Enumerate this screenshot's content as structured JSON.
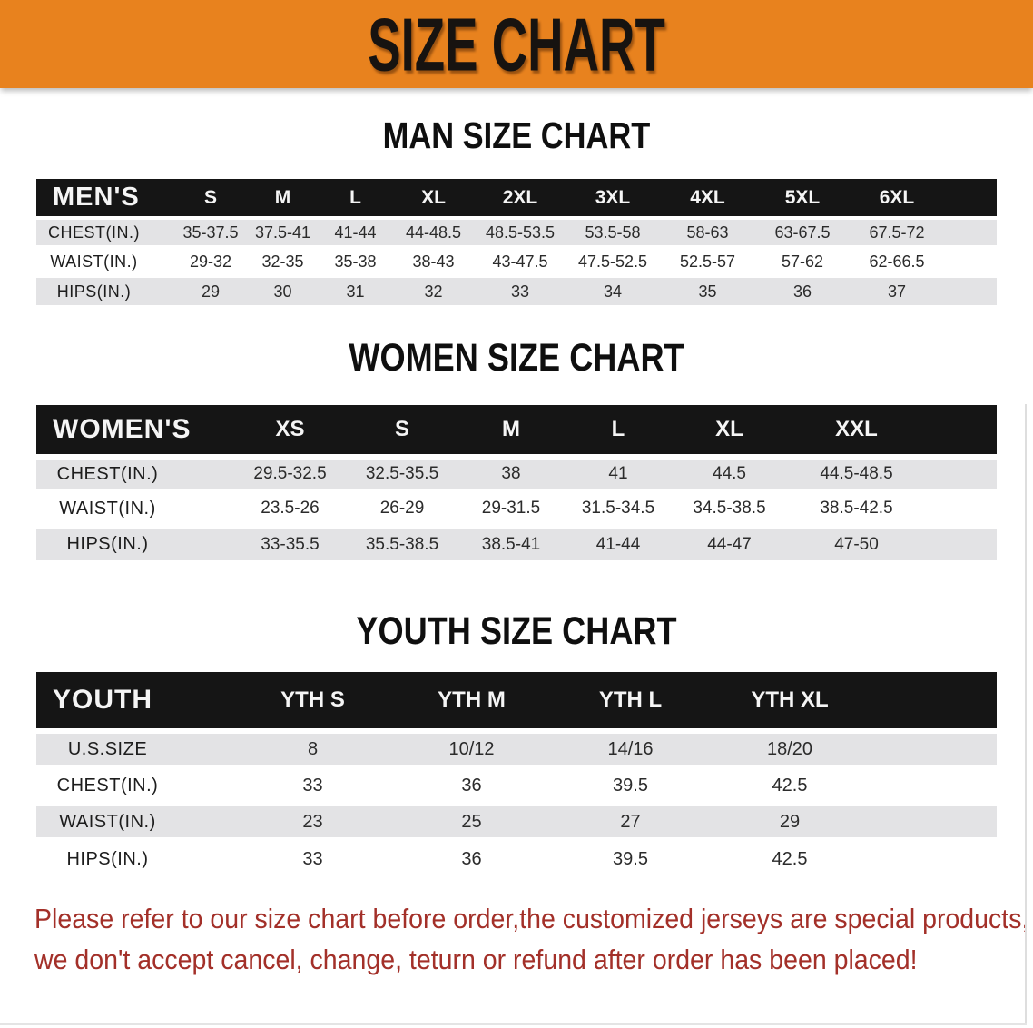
{
  "banner": {
    "title": "SIZE CHART"
  },
  "colors": {
    "banner_bg": "#e8821e",
    "table_header_bg": "#151515",
    "row_stripe": "#e3e3e5",
    "footer_text": "#a33029"
  },
  "sections": {
    "men": {
      "heading": "MAN SIZE CHART",
      "table": {
        "label": "MEN'S",
        "columns": [
          "S",
          "M",
          "L",
          "XL",
          "2XL",
          "3XL",
          "4XL",
          "5XL",
          "6XL"
        ],
        "rows": [
          {
            "label": "CHEST(IN.)",
            "values": [
              "35-37.5",
              "37.5-41",
              "41-44",
              "44-48.5",
              "48.5-53.5",
              "53.5-58",
              "58-63",
              "63-67.5",
              "67.5-72"
            ]
          },
          {
            "label": "WAIST(IN.)",
            "values": [
              "29-32",
              "32-35",
              "35-38",
              "38-43",
              "43-47.5",
              "47.5-52.5",
              "52.5-57",
              "57-62",
              "62-66.5"
            ]
          },
          {
            "label": "HIPS(IN.)",
            "values": [
              "29",
              "30",
              "31",
              "32",
              "33",
              "34",
              "35",
              "36",
              "37"
            ]
          }
        ]
      }
    },
    "women": {
      "heading": "WOMEN SIZE CHART",
      "table": {
        "label": "WOMEN'S",
        "columns": [
          "XS",
          "S",
          "M",
          "L",
          "XL",
          "XXL"
        ],
        "rows": [
          {
            "label": "CHEST(IN.)",
            "values": [
              "29.5-32.5",
              "32.5-35.5",
              "38",
              "41",
              "44.5",
              "44.5-48.5"
            ]
          },
          {
            "label": "WAIST(IN.)",
            "values": [
              "23.5-26",
              "26-29",
              "29-31.5",
              "31.5-34.5",
              "34.5-38.5",
              "38.5-42.5"
            ]
          },
          {
            "label": "HIPS(IN.)",
            "values": [
              "33-35.5",
              "35.5-38.5",
              "38.5-41",
              "41-44",
              "44-47",
              "47-50"
            ]
          }
        ]
      }
    },
    "youth": {
      "heading": "YOUTH SIZE CHART",
      "table": {
        "label": "YOUTH",
        "columns": [
          "YTH S",
          "YTH M",
          "YTH L",
          "YTH XL"
        ],
        "rows": [
          {
            "label": "U.S.SIZE",
            "values": [
              "8",
              "10/12",
              "14/16",
              "18/20"
            ]
          },
          {
            "label": "CHEST(IN.)",
            "values": [
              "33",
              "36",
              "39.5",
              "42.5"
            ]
          },
          {
            "label": "WAIST(IN.)",
            "values": [
              "23",
              "25",
              "27",
              "29"
            ]
          },
          {
            "label": "HIPS(IN.)",
            "values": [
              "33",
              "36",
              "39.5",
              "42.5"
            ]
          }
        ]
      }
    }
  },
  "footer": {
    "line1": "Please refer to our size chart before order,the customized jerseys are special products,",
    "line2": "we don't accept cancel, change, teturn or refund after order has been placed!"
  }
}
